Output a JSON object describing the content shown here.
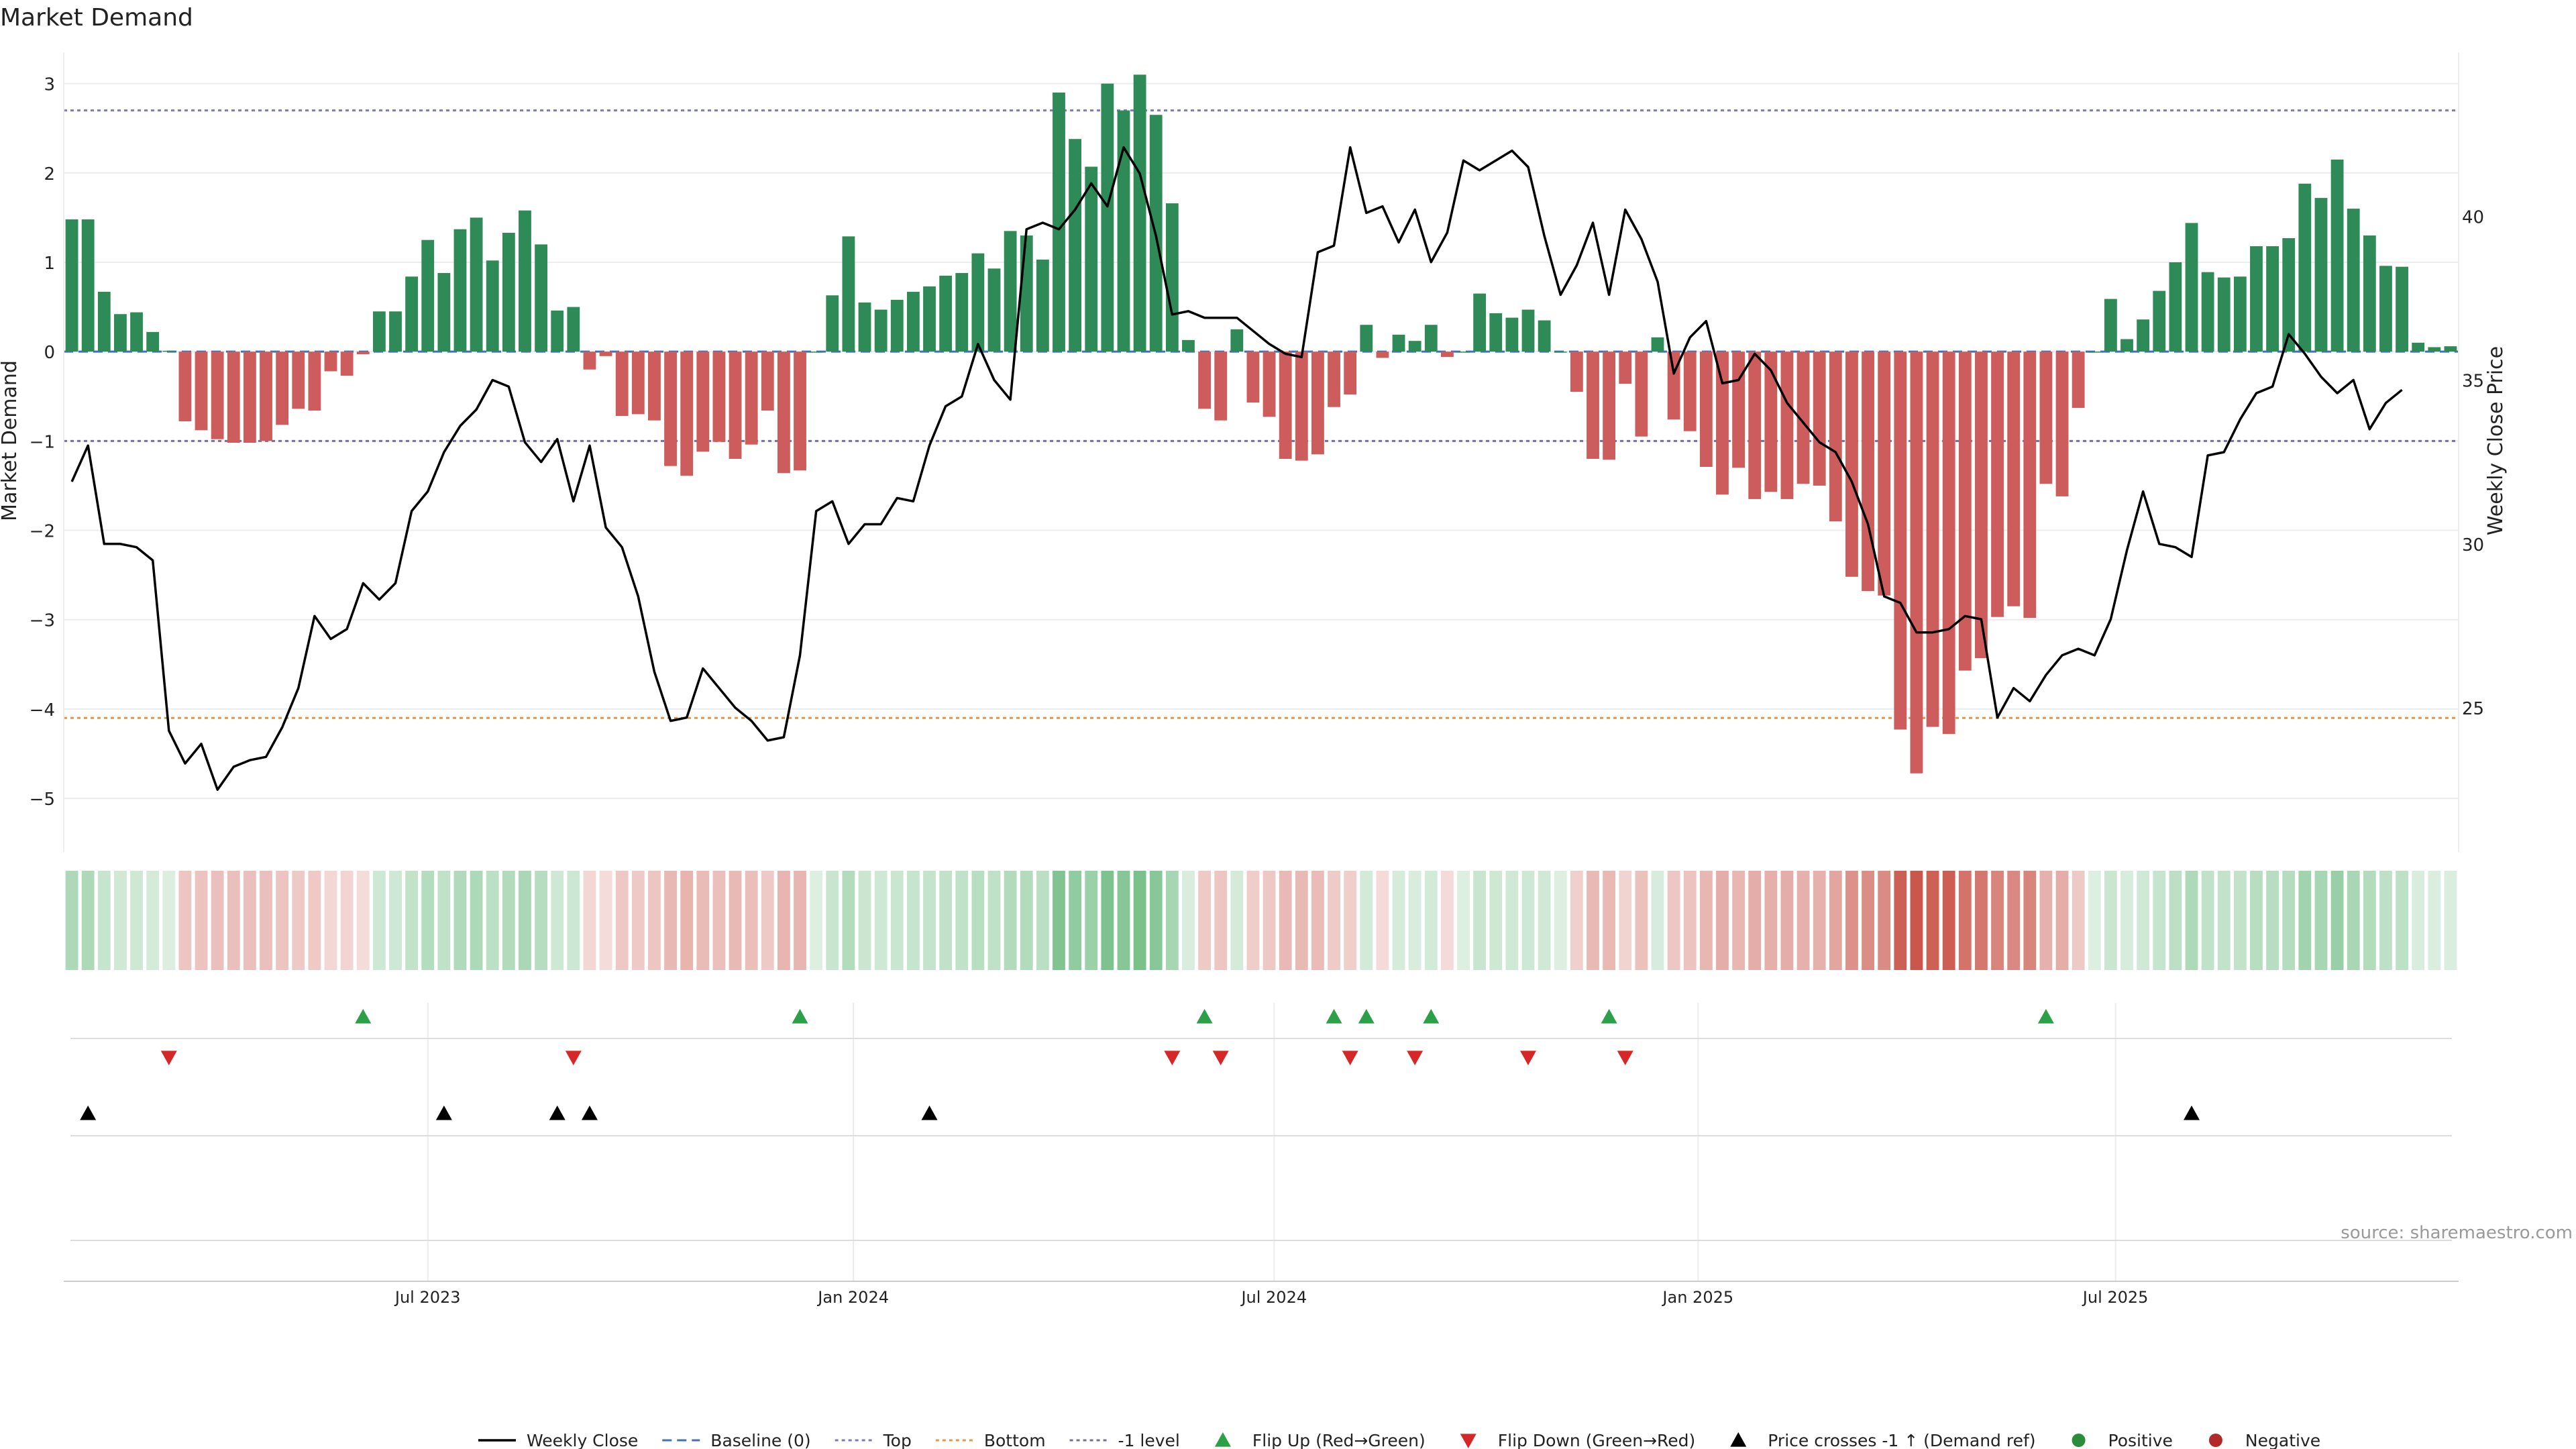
{
  "chart_data": {
    "type": "bar",
    "title": "Market Demand",
    "ylabel": "Market Demand",
    "y2label": "Weekly Close Price",
    "ylim": [
      -5.6,
      3.35
    ],
    "y2lim": [
      20.6,
      45.0
    ],
    "yticks": [
      3,
      2,
      1,
      0,
      -1,
      -2,
      -3,
      -4,
      -5
    ],
    "y2ticks": [
      40,
      35,
      30,
      25
    ],
    "ytick_labels": [
      "3",
      "2",
      "1",
      "0",
      "−1",
      "−2",
      "−3",
      "−4",
      "−5"
    ],
    "y2tick_labels": [
      "40",
      "35",
      "30",
      "25"
    ],
    "xticks": [
      "Jul 2023",
      "Jan 2024",
      "Jul 2024",
      "Jan 2025",
      "Jul 2025"
    ],
    "xtick_index": [
      22.5,
      48.8,
      74.8,
      101,
      126.8
    ],
    "reference_lines": {
      "top": 2.7,
      "bottom": -4.1,
      "minus_one": -1,
      "baseline": 0
    },
    "series": [
      {
        "name": "Market Demand",
        "kind": "bar",
        "values": [
          1.48,
          1.48,
          0.67,
          0.42,
          0.44,
          0.22,
          0.01,
          -0.78,
          -0.88,
          -0.98,
          -1.02,
          -1.02,
          -1.0,
          -0.82,
          -0.64,
          -0.66,
          -0.22,
          -0.27,
          -0.03,
          0.45,
          0.45,
          0.84,
          1.25,
          0.88,
          1.37,
          1.5,
          1.02,
          1.33,
          1.58,
          1.2,
          0.46,
          0.5,
          -0.2,
          -0.05,
          -0.72,
          -0.7,
          -0.77,
          -1.28,
          -1.39,
          -1.12,
          -1.01,
          -1.2,
          -1.04,
          -0.66,
          -1.36,
          -1.33,
          0.0,
          0.63,
          1.29,
          0.55,
          0.47,
          0.58,
          0.67,
          0.73,
          0.85,
          0.88,
          1.1,
          0.93,
          1.35,
          1.3,
          1.03,
          2.9,
          2.38,
          2.07,
          3.0,
          2.7,
          3.1,
          2.65,
          1.66,
          0.13,
          -0.64,
          -0.77,
          0.25,
          -0.57,
          -0.73,
          -1.2,
          -1.22,
          -1.15,
          -0.62,
          -0.48,
          0.3,
          -0.07,
          0.19,
          0.12,
          0.3,
          -0.06,
          0.0,
          0.65,
          0.43,
          0.38,
          0.47,
          0.35,
          0.0,
          -0.45,
          -1.2,
          -1.21,
          -0.36,
          -0.95,
          0.16,
          -0.76,
          -0.89,
          -1.29,
          -1.6,
          -1.3,
          -1.65,
          -1.57,
          -1.65,
          -1.48,
          -1.5,
          -1.9,
          -2.52,
          -2.68,
          -2.73,
          -4.23,
          -4.72,
          -4.2,
          -4.28,
          -3.57,
          -3.43,
          -2.97,
          -2.85,
          -2.98,
          -1.48,
          -1.62,
          -0.63,
          0.0,
          0.59,
          0.14,
          0.36,
          0.68,
          1.0,
          1.44,
          0.89,
          0.83,
          0.84,
          1.18,
          1.18,
          1.27,
          1.88,
          1.72,
          2.15,
          1.6,
          1.3,
          0.96,
          0.95,
          0.1,
          0.05,
          0.06
        ]
      },
      {
        "name": "Weekly Close",
        "kind": "line",
        "axis": "right",
        "values": [
          31.9,
          33.0,
          30.0,
          30.0,
          29.9,
          29.5,
          24.3,
          23.3,
          23.9,
          22.5,
          23.2,
          23.4,
          23.5,
          24.4,
          25.6,
          27.8,
          27.1,
          27.4,
          28.8,
          28.3,
          28.8,
          31.0,
          31.6,
          32.8,
          33.6,
          34.1,
          35.0,
          34.8,
          33.1,
          32.5,
          33.2,
          31.3,
          33.0,
          30.5,
          29.9,
          28.4,
          26.1,
          24.6,
          24.7,
          26.2,
          25.6,
          25.0,
          24.6,
          24.0,
          24.1,
          26.6,
          31.0,
          31.3,
          30.0,
          30.6,
          30.6,
          31.4,
          31.3,
          33.0,
          34.2,
          34.5,
          36.1,
          35.0,
          34.4,
          39.6,
          39.8,
          39.6,
          40.2,
          41.0,
          40.3,
          42.1,
          41.3,
          39.4,
          37.0,
          37.1,
          36.9,
          36.9,
          36.9,
          36.5,
          36.1,
          35.8,
          35.7,
          38.9,
          39.1,
          42.1,
          40.1,
          40.3,
          39.2,
          40.2,
          38.6,
          39.5,
          41.7,
          41.4,
          41.7,
          42.0,
          41.5,
          39.4,
          37.6,
          38.5,
          39.8,
          37.6,
          40.2,
          39.3,
          38.0,
          35.2,
          36.3,
          36.8,
          34.9,
          35.0,
          35.8,
          35.3,
          34.3,
          33.7,
          33.1,
          32.8,
          31.9,
          30.6,
          28.4,
          28.2,
          27.3,
          27.3,
          27.4,
          27.8,
          27.7,
          24.7,
          25.6,
          25.2,
          26.0,
          26.6,
          26.8,
          26.6,
          27.7,
          29.8,
          31.6,
          30.0,
          29.9,
          29.6,
          32.7,
          32.8,
          33.8,
          34.6,
          34.8,
          36.4,
          35.8,
          35.1,
          34.6,
          35.0,
          33.5,
          34.3,
          34.7
        ]
      },
      {
        "name": "Flip Up (Red→Green)",
        "kind": "marker",
        "indices": [
          18,
          45,
          70,
          78,
          80,
          84,
          95,
          122
        ]
      },
      {
        "name": "Flip Down (Green→Red)",
        "kind": "marker",
        "indices": [
          6,
          31,
          68,
          71,
          79,
          83,
          90,
          96
        ]
      },
      {
        "name": "Price crosses −1 ↑ (Demand ref)",
        "kind": "marker",
        "indices": [
          1,
          23,
          30,
          32,
          53,
          131
        ]
      }
    ],
    "legend": [
      {
        "label": "Weekly Close",
        "symbol": "line",
        "color": "#000000"
      },
      {
        "label": "Baseline (0)",
        "symbol": "dash",
        "color": "#3f72b8"
      },
      {
        "label": "Top",
        "symbol": "dot",
        "color": "#7a79c7"
      },
      {
        "label": "Bottom",
        "symbol": "dot",
        "color": "#e69547"
      },
      {
        "label": "-1 level",
        "symbol": "dot",
        "color": "#776e9a"
      },
      {
        "label": "Flip Up (Red→Green)",
        "symbol": "tri-up",
        "color": "#2ca048"
      },
      {
        "label": "Flip Down (Green→Red)",
        "symbol": "tri-down",
        "color": "#d62728"
      },
      {
        "label": "Price crosses -1 ↑ (Demand ref)",
        "symbol": "tri-up",
        "color": "#000000"
      },
      {
        "label": "Positive",
        "symbol": "dot-marker",
        "color": "#2a8d3c"
      },
      {
        "label": "Negative",
        "symbol": "dot-marker",
        "color": "#b02a2a"
      }
    ],
    "legend_position": "bottom",
    "grid": true
  },
  "source_note": "source: sharemaestro.com",
  "colors": {
    "positive_bar": "#2e8b57",
    "negative_bar": "#cd5c5c",
    "heat_positive": "#2e9e4a",
    "heat_negative": "#c0392b",
    "line": "#000000",
    "grid": "#ececec",
    "axis": "#cccccc",
    "text": "#222222",
    "muted": "#999999"
  }
}
